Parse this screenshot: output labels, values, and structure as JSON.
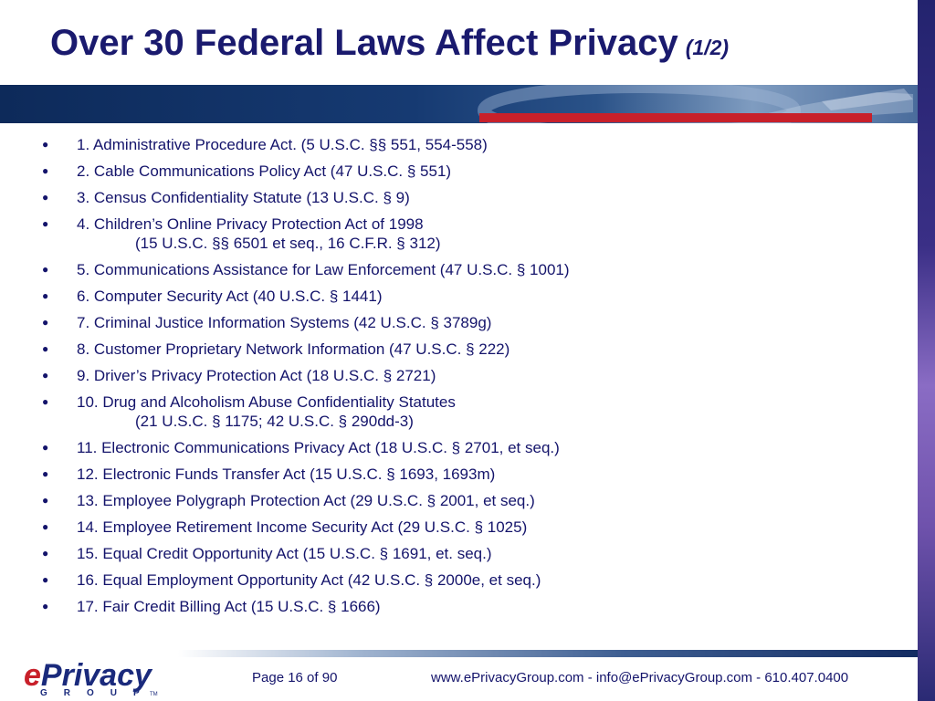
{
  "slide": {
    "title": "Over 30 Federal Laws Affect Privacy",
    "title_suffix": "(1/2)"
  },
  "items": [
    {
      "text": "1. Administrative Procedure Act. (5 U.S.C. §§ 551, 554-558)"
    },
    {
      "text": "2. Cable Communications Policy Act (47 U.S.C. § 551)"
    },
    {
      "text": "3. Census Confidentiality Statute (13 U.S.C. § 9)"
    },
    {
      "text": "4. Children’s Online Privacy Protection Act of 1998",
      "sub": "(15 U.S.C. §§ 6501 et seq., 16 C.F.R. § 312)"
    },
    {
      "text": "5. Communications Assistance for Law Enforcement (47 U.S.C. § 1001)"
    },
    {
      "text": "6. Computer Security Act (40 U.S.C. § 1441)"
    },
    {
      "text": "7. Criminal Justice Information Systems (42 U.S.C. § 3789g)"
    },
    {
      "text": "8. Customer Proprietary Network Information (47 U.S.C. § 222)"
    },
    {
      "text": "9. Driver’s Privacy Protection Act (18 U.S.C. § 2721)"
    },
    {
      "text": "10. Drug and Alcoholism Abuse Confidentiality Statutes",
      "sub": "(21 U.S.C. § 1175; 42 U.S.C. § 290dd-3)"
    },
    {
      "text": "11. Electronic Communications Privacy Act (18 U.S.C. § 2701, et seq.)"
    },
    {
      "text": "12. Electronic Funds Transfer Act (15 U.S.C. § 1693, 1693m)"
    },
    {
      "text": "13. Employee Polygraph Protection Act (29 U.S.C. § 2001, et seq.)"
    },
    {
      "text": "14. Employee Retirement Income Security Act (29 U.S.C. § 1025)"
    },
    {
      "text": "15. Equal Credit Opportunity Act (15 U.S.C. § 1691, et. seq.)"
    },
    {
      "text": "16. Equal Employment Opportunity Act (42 U.S.C. § 2000e, et seq.)"
    },
    {
      "text": "17. Fair Credit Billing Act (15 U.S.C. § 1666)"
    }
  ],
  "bullet_icon": "filled-circle-bullet",
  "footer": {
    "logo_prefix": "e",
    "logo_main": "Privacy",
    "logo_sub": "GROUP",
    "logo_tm": "TM",
    "page": "Page 16 of 90",
    "contact": "www.ePrivacyGroup.com - info@ePrivacyGroup.com - 610.407.0400"
  },
  "colors": {
    "title": "#1a1a6e",
    "text": "#14146b",
    "brand_red": "#c8202a",
    "brand_blue": "#1a2a7c"
  }
}
